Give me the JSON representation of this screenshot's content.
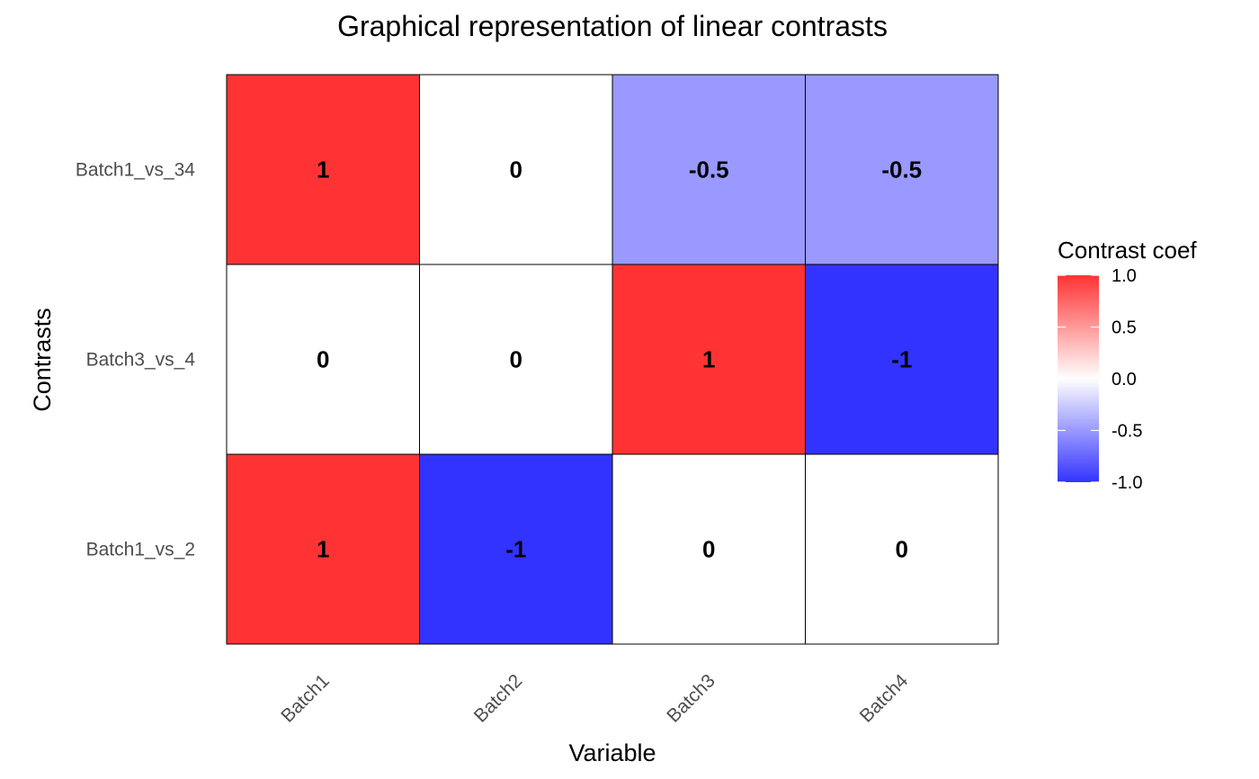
{
  "chart_data": {
    "type": "heatmap",
    "title": "Graphical representation of linear contrasts",
    "xlabel": "Variable",
    "ylabel": "Contrasts",
    "x_categories": [
      "Batch1",
      "Batch2",
      "Batch3",
      "Batch4"
    ],
    "y_categories": [
      "Batch1_vs_34",
      "Batch3_vs_4",
      "Batch1_vs_2"
    ],
    "values": [
      [
        1,
        0,
        -0.5,
        -0.5
      ],
      [
        0,
        0,
        1,
        -1
      ],
      [
        1,
        -1,
        0,
        0
      ]
    ],
    "cell_labels": [
      [
        "1",
        "0",
        "-0.5",
        "-0.5"
      ],
      [
        "0",
        "0",
        "1",
        "-1"
      ],
      [
        "1",
        "-1",
        "0",
        "0"
      ]
    ],
    "color_scale": {
      "low": "#3333ff",
      "mid": "#ffffff",
      "high": "#ff3333",
      "limits": [
        -1,
        1
      ]
    },
    "legend": {
      "title": "Contrast coef",
      "placement": "right",
      "breaks": [
        1.0,
        0.5,
        0.0,
        -0.5,
        -1.0
      ],
      "break_labels": [
        "1.0",
        "0.5",
        "0.0",
        "-0.5",
        "-1.0"
      ]
    },
    "grid": false
  }
}
